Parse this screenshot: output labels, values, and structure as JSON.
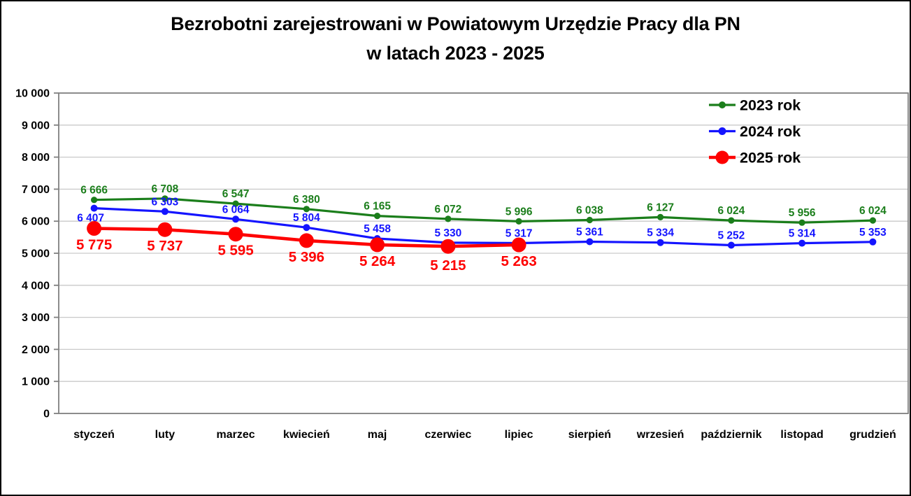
{
  "title": {
    "line1": "Bezrobotni zarejestrowani w Powiatowym Urzędzie Pracy dla PN",
    "line2": "w latach 2023 - 2025"
  },
  "chart_data": {
    "type": "line",
    "title": "Bezrobotni zarejestrowani w Powiatowym Urzędzie Pracy dla PN w latach 2023 - 2025",
    "categories": [
      "styczeń",
      "luty",
      "marzec",
      "kwiecień",
      "maj",
      "czerwiec",
      "lipiec",
      "sierpień",
      "wrzesień",
      "październik",
      "listopad",
      "grudzień"
    ],
    "series": [
      {
        "name": "2023 rok",
        "color": "#1b7e1b",
        "values": [
          6666,
          6708,
          6547,
          6380,
          6165,
          6072,
          5996,
          6038,
          6127,
          6024,
          5956,
          6024
        ],
        "label_position": "above"
      },
      {
        "name": "2024 rok",
        "color": "#1414ff",
        "values": [
          6407,
          6303,
          6064,
          5804,
          5458,
          5330,
          5317,
          5361,
          5334,
          5252,
          5314,
          5353
        ],
        "label_position": "above",
        "label_position_overrides": {
          "0": "below-left"
        }
      },
      {
        "name": "2025 rok",
        "color": "#fe0000",
        "values": [
          5775,
          5737,
          5595,
          5396,
          5264,
          5215,
          5263
        ],
        "label_position": "below",
        "label_position_overrides": {
          "5": "below-lower"
        }
      }
    ],
    "ylim": [
      0,
      10000
    ],
    "ytick_step": 1000,
    "grid": true,
    "legend_position": "top-right",
    "number_format": "space-thousands",
    "axis_color": "#808080",
    "grid_color": "#c9c9c9",
    "text_color": "#000000"
  }
}
